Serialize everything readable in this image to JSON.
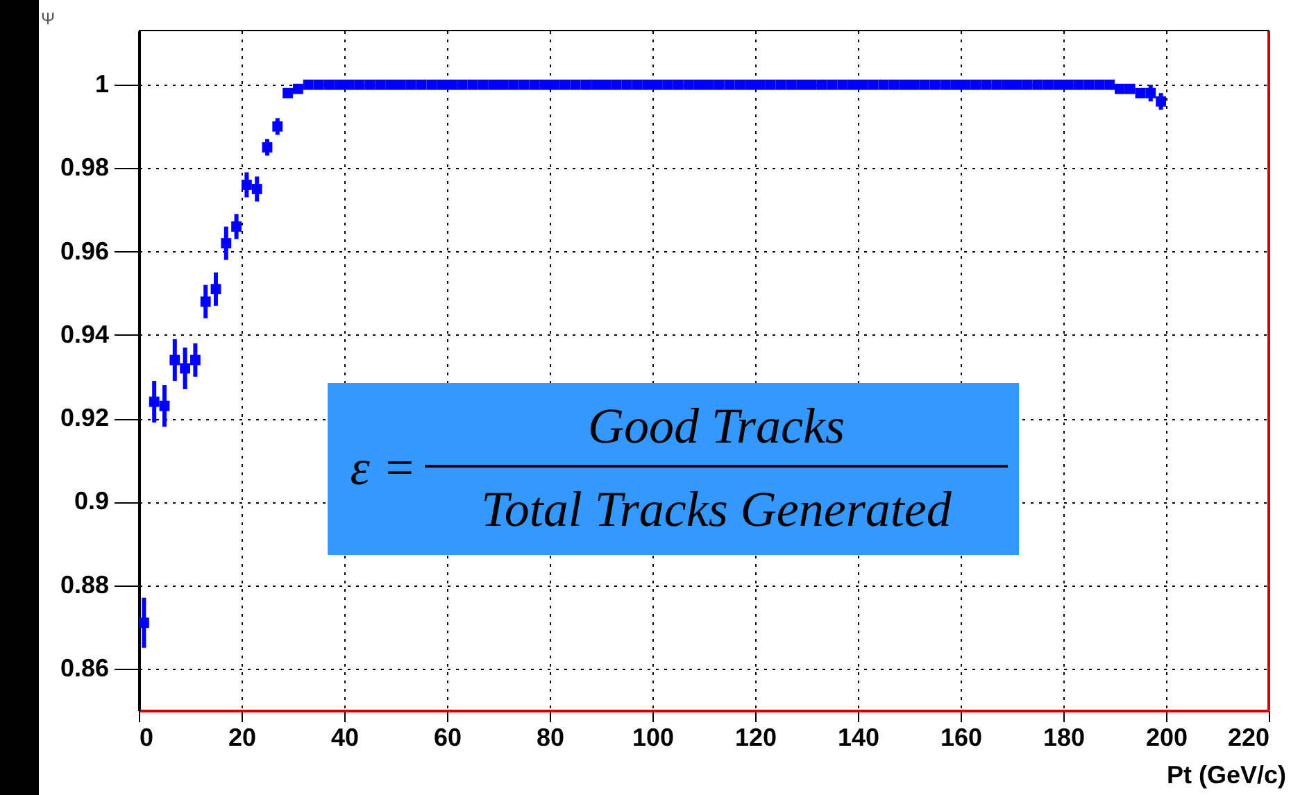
{
  "chart_data": {
    "type": "scatter",
    "ylabel": "Ψ",
    "xlabel": "Pt (GeV/c)",
    "x": [
      1,
      3,
      5,
      7,
      9,
      11,
      13,
      15,
      17,
      19,
      21,
      23,
      25,
      27,
      29,
      31,
      33,
      35,
      37,
      39,
      41,
      43,
      45,
      47,
      49,
      51,
      53,
      55,
      57,
      59,
      61,
      63,
      65,
      67,
      69,
      71,
      73,
      75,
      77,
      79,
      81,
      83,
      85,
      87,
      89,
      91,
      93,
      95,
      97,
      99,
      101,
      103,
      105,
      107,
      109,
      111,
      113,
      115,
      117,
      119,
      121,
      123,
      125,
      127,
      129,
      131,
      133,
      135,
      137,
      139,
      141,
      143,
      145,
      147,
      149,
      151,
      153,
      155,
      157,
      159,
      161,
      163,
      165,
      167,
      169,
      171,
      173,
      175,
      177,
      179,
      181,
      183,
      185,
      187,
      189,
      191,
      193,
      195,
      197,
      199
    ],
    "series": [
      {
        "color": "#0000ff",
        "values": [
          0.871,
          0.924,
          0.923,
          0.934,
          0.932,
          0.934,
          0.948,
          0.951,
          0.962,
          0.966,
          0.976,
          0.975,
          0.985,
          0.99,
          0.998,
          0.999,
          1,
          1,
          1,
          1,
          1,
          1,
          1,
          1,
          1,
          1,
          1,
          1,
          1,
          1,
          1,
          1,
          1,
          1,
          1,
          1,
          1,
          1,
          1,
          1,
          1,
          1,
          1,
          1,
          1,
          1,
          1,
          1,
          1,
          1,
          1,
          1,
          1,
          1,
          1,
          1,
          1,
          1,
          1,
          1,
          1,
          1,
          1,
          1,
          1,
          1,
          1,
          1,
          1,
          1,
          1,
          1,
          1,
          1,
          1,
          1,
          1,
          1,
          1,
          1,
          1,
          1,
          1,
          1,
          1,
          1,
          1,
          1,
          1,
          1,
          1,
          1,
          1,
          1,
          1,
          0.999,
          0.999,
          0.998,
          0.998,
          0.996
        ],
        "errors": [
          0.006,
          0.005,
          0.005,
          0.005,
          0.005,
          0.004,
          0.004,
          0.004,
          0.004,
          0.003,
          0.003,
          0.003,
          0.002,
          0.002,
          0.001,
          0.001,
          null,
          null,
          null,
          null,
          null,
          null,
          null,
          null,
          null,
          null,
          null,
          null,
          null,
          null,
          null,
          null,
          null,
          null,
          null,
          null,
          null,
          null,
          null,
          null,
          null,
          null,
          null,
          null,
          null,
          null,
          null,
          null,
          null,
          null,
          null,
          null,
          null,
          null,
          null,
          null,
          null,
          null,
          null,
          null,
          null,
          null,
          null,
          null,
          null,
          null,
          null,
          null,
          null,
          null,
          null,
          null,
          null,
          null,
          null,
          null,
          null,
          null,
          null,
          null,
          null,
          null,
          null,
          null,
          null,
          null,
          null,
          null,
          null,
          null,
          null,
          null,
          null,
          null,
          null,
          0.001,
          0.001,
          0.001,
          0.002,
          0.002
        ]
      }
    ],
    "xlim": [
      0,
      220
    ],
    "xticks": [
      0,
      20,
      40,
      60,
      80,
      100,
      120,
      140,
      160,
      180,
      200,
      220
    ],
    "ylim": [
      0.85,
      1.013
    ],
    "yticks": [
      0.86,
      0.88,
      0.9,
      0.92,
      0.94,
      0.96,
      0.98,
      1
    ],
    "grid": true,
    "marker": "square",
    "annotations": [
      "ε =",
      "Good Tracks",
      "Total Tracks Generated"
    ]
  }
}
